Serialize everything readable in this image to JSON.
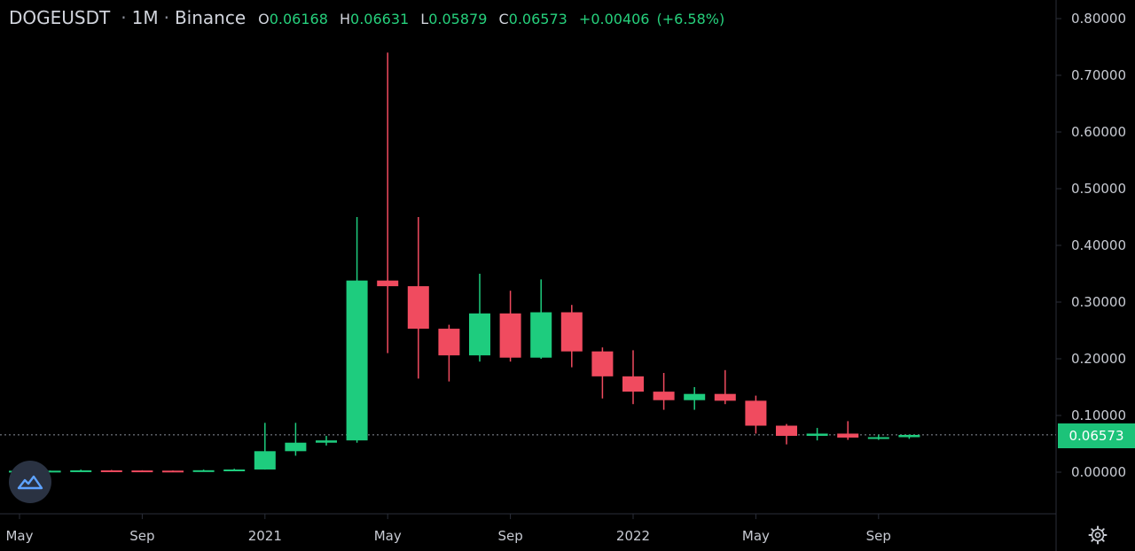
{
  "header": {
    "symbol": "DOGEUSDT",
    "interval": "1M",
    "exchange": "Binance",
    "sep": "·",
    "o_label": "O",
    "o_value": "0.06168",
    "h_label": "H",
    "h_value": "0.06631",
    "l_label": "L",
    "l_value": "0.05879",
    "c_label": "C",
    "c_value": "0.06573",
    "change": "+0.00406",
    "change_pct": "(+6.58%)"
  },
  "last_price_label": "0.06573",
  "colors": {
    "up": "#1ecc7e",
    "down": "#f04b5f",
    "background": "#000000",
    "text": "#c8cbd3",
    "price_tag": "#1cc379"
  },
  "icons": {
    "logo": "tradingview-logo-icon",
    "settings": "gear-icon"
  },
  "chart_data": {
    "type": "candlestick",
    "title": "DOGEUSDT · 1M · Binance",
    "ylim": [
      -0.07,
      0.82
    ],
    "y_ticks": [
      "0.00000",
      "0.10000",
      "0.20000",
      "0.30000",
      "0.40000",
      "0.50000",
      "0.60000",
      "0.70000",
      "0.80000"
    ],
    "x_ticks": [
      {
        "label": "May",
        "month": "2020-05"
      },
      {
        "label": "Sep",
        "month": "2020-09"
      },
      {
        "label": "2021",
        "month": "2021-01"
      },
      {
        "label": "May",
        "month": "2021-05"
      },
      {
        "label": "Sep",
        "month": "2021-09"
      },
      {
        "label": "2022",
        "month": "2022-01"
      },
      {
        "label": "May",
        "month": "2022-05"
      },
      {
        "label": "Sep",
        "month": "2022-09"
      }
    ],
    "last_price": 0.06573,
    "candles": [
      {
        "month": "2020-05",
        "o": 0.0021,
        "h": 0.0027,
        "l": 0.002,
        "c": 0.0025
      },
      {
        "month": "2020-06",
        "o": 0.0025,
        "h": 0.0028,
        "l": 0.0023,
        "c": 0.0026
      },
      {
        "month": "2020-07",
        "o": 0.0026,
        "h": 0.0045,
        "l": 0.0025,
        "c": 0.0032
      },
      {
        "month": "2020-08",
        "o": 0.0032,
        "h": 0.0039,
        "l": 0.0029,
        "c": 0.003
      },
      {
        "month": "2020-09",
        "o": 0.003,
        "h": 0.0034,
        "l": 0.0025,
        "c": 0.0027
      },
      {
        "month": "2020-10",
        "o": 0.0027,
        "h": 0.003,
        "l": 0.0023,
        "c": 0.0026
      },
      {
        "month": "2020-11",
        "o": 0.0026,
        "h": 0.0045,
        "l": 0.0025,
        "c": 0.0034
      },
      {
        "month": "2020-12",
        "o": 0.0034,
        "h": 0.006,
        "l": 0.0032,
        "c": 0.0047
      },
      {
        "month": "2021-01",
        "o": 0.0047,
        "h": 0.087,
        "l": 0.0045,
        "c": 0.037
      },
      {
        "month": "2021-02",
        "o": 0.037,
        "h": 0.087,
        "l": 0.029,
        "c": 0.052
      },
      {
        "month": "2021-03",
        "o": 0.052,
        "h": 0.064,
        "l": 0.047,
        "c": 0.056
      },
      {
        "month": "2021-04",
        "o": 0.056,
        "h": 0.45,
        "l": 0.052,
        "c": 0.338
      },
      {
        "month": "2021-05",
        "o": 0.338,
        "h": 0.74,
        "l": 0.21,
        "c": 0.328
      },
      {
        "month": "2021-06",
        "o": 0.328,
        "h": 0.45,
        "l": 0.165,
        "c": 0.253
      },
      {
        "month": "2021-07",
        "o": 0.253,
        "h": 0.26,
        "l": 0.16,
        "c": 0.206
      },
      {
        "month": "2021-08",
        "o": 0.206,
        "h": 0.35,
        "l": 0.195,
        "c": 0.28
      },
      {
        "month": "2021-09",
        "o": 0.28,
        "h": 0.32,
        "l": 0.195,
        "c": 0.202
      },
      {
        "month": "2021-10",
        "o": 0.202,
        "h": 0.34,
        "l": 0.2,
        "c": 0.282
      },
      {
        "month": "2021-11",
        "o": 0.282,
        "h": 0.295,
        "l": 0.185,
        "c": 0.213
      },
      {
        "month": "2021-12",
        "o": 0.213,
        "h": 0.22,
        "l": 0.13,
        "c": 0.169
      },
      {
        "month": "2022-01",
        "o": 0.169,
        "h": 0.215,
        "l": 0.12,
        "c": 0.142
      },
      {
        "month": "2022-02",
        "o": 0.142,
        "h": 0.175,
        "l": 0.11,
        "c": 0.127
      },
      {
        "month": "2022-03",
        "o": 0.127,
        "h": 0.15,
        "l": 0.11,
        "c": 0.138
      },
      {
        "month": "2022-04",
        "o": 0.138,
        "h": 0.18,
        "l": 0.12,
        "c": 0.126
      },
      {
        "month": "2022-05",
        "o": 0.126,
        "h": 0.135,
        "l": 0.068,
        "c": 0.082
      },
      {
        "month": "2022-06",
        "o": 0.082,
        "h": 0.085,
        "l": 0.049,
        "c": 0.064
      },
      {
        "month": "2022-07",
        "o": 0.064,
        "h": 0.078,
        "l": 0.056,
        "c": 0.068
      },
      {
        "month": "2022-08",
        "o": 0.068,
        "h": 0.09,
        "l": 0.057,
        "c": 0.061
      },
      {
        "month": "2022-09",
        "o": 0.061,
        "h": 0.066,
        "l": 0.057,
        "c": 0.0617
      },
      {
        "month": "2022-10",
        "o": 0.0617,
        "h": 0.0663,
        "l": 0.0588,
        "c": 0.0657
      }
    ]
  }
}
